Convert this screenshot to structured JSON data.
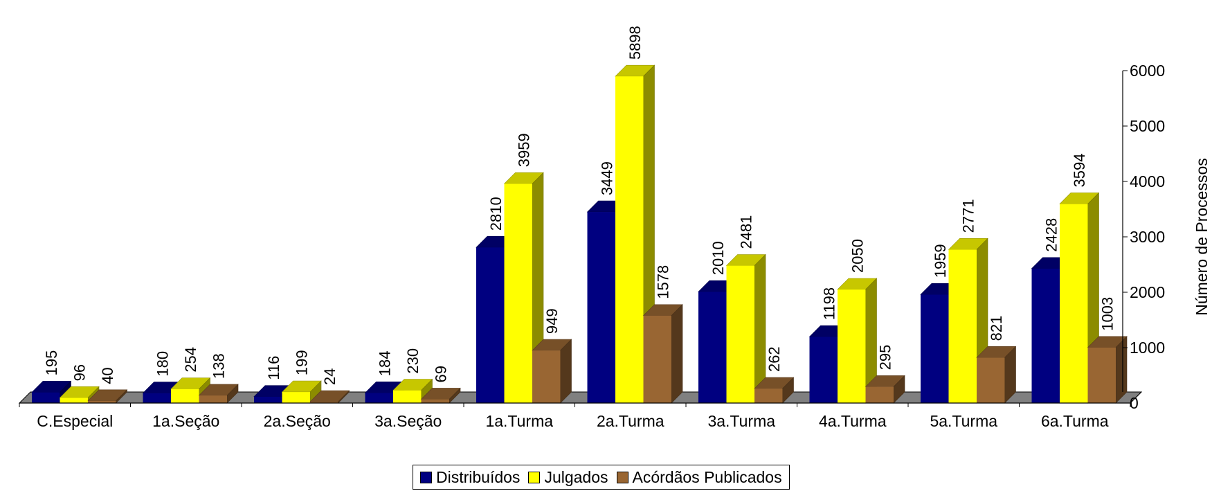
{
  "chart_data": {
    "type": "bar",
    "categories": [
      "C.Especial",
      "1a.Seção",
      "2a.Seção",
      "3a.Seção",
      "1a.Turma",
      "2a.Turma",
      "3a.Turma",
      "4a.Turma",
      "5a.Turma",
      "6a.Turma"
    ],
    "series": [
      {
        "name": "Distribuídos",
        "color": "#000080",
        "values": [
          195,
          180,
          116,
          184,
          2810,
          3449,
          2010,
          1198,
          1959,
          2428
        ]
      },
      {
        "name": "Julgados",
        "color": "#FFFF00",
        "values": [
          96,
          254,
          199,
          230,
          3959,
          5898,
          2481,
          2050,
          2771,
          3594
        ]
      },
      {
        "name": "Acórdãos Publicados",
        "color": "#996633",
        "values": [
          40,
          138,
          24,
          69,
          949,
          1578,
          262,
          295,
          821,
          1003
        ]
      }
    ],
    "ylabel": "Número de Processos",
    "ylim": [
      0,
      6000
    ],
    "yticks": [
      0,
      1000,
      2000,
      3000,
      4000,
      5000,
      6000
    ],
    "y_axis_side": "right",
    "legend_position": "bottom",
    "grid": false,
    "data_labels": true
  }
}
